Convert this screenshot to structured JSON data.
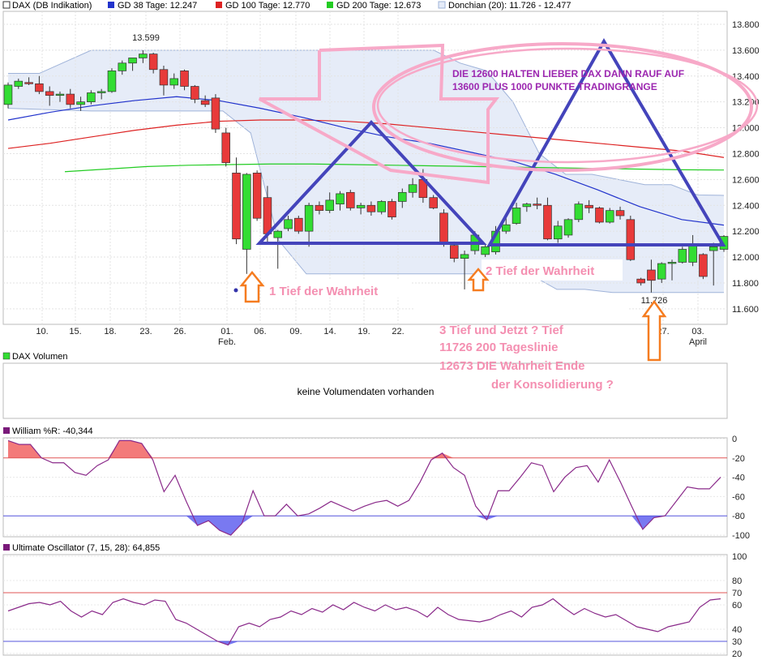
{
  "legend": {
    "dax": "DAX (DB Indikation)",
    "gd38": "GD 38 Tage: 12.247",
    "gd100": "GD 100 Tage: 12.770",
    "gd200": "GD 200 Tage: 12.673",
    "donchian": "Donchian (20): 11.726 - 12.477"
  },
  "colors": {
    "up": "#33dd33",
    "down": "#e83a3a",
    "gd38": "#2233cc",
    "gd100": "#dd2222",
    "gd200": "#22cc22",
    "donchian_fill": "#e6ecf8",
    "donchian_line": "#9fb3d9",
    "triangle": "#4444bb",
    "annotation_pink": "#f48fb1",
    "annotation_purple": "#9c27b0",
    "arrow": "#f57c20"
  },
  "chart_data": [
    {
      "type": "candlestick",
      "ylim": [
        11480,
        13900
      ],
      "yticks": [
        "11.600",
        "11.800",
        "12.000",
        "12.200",
        "12.400",
        "12.600",
        "12.800",
        "13.000",
        "13.200",
        "13.400",
        "13.600",
        "13.800"
      ],
      "ytick_values": [
        11600,
        11800,
        12000,
        12200,
        12400,
        12600,
        12800,
        13000,
        13200,
        13400,
        13600,
        13800
      ],
      "xticks": [
        "10.",
        "15.",
        "18.",
        "23.",
        "26.",
        "01.",
        "06.",
        "09.",
        "14.",
        "19.",
        "22.",
        "27.",
        "03."
      ],
      "xtick_sub": [
        "Feb.",
        "April"
      ],
      "candles": [
        {
          "o": 13180,
          "h": 13350,
          "l": 13150,
          "c": 13330
        },
        {
          "o": 13320,
          "h": 13380,
          "l": 13300,
          "c": 13360
        },
        {
          "o": 13350,
          "h": 13390,
          "l": 13330,
          "c": 13340
        },
        {
          "o": 13340,
          "h": 13400,
          "l": 13260,
          "c": 13280
        },
        {
          "o": 13280,
          "h": 13320,
          "l": 13170,
          "c": 13250
        },
        {
          "o": 13250,
          "h": 13280,
          "l": 13200,
          "c": 13260
        },
        {
          "o": 13260,
          "h": 13300,
          "l": 13150,
          "c": 13180
        },
        {
          "o": 13180,
          "h": 13240,
          "l": 13130,
          "c": 13200
        },
        {
          "o": 13200,
          "h": 13290,
          "l": 13180,
          "c": 13270
        },
        {
          "o": 13270,
          "h": 13300,
          "l": 13220,
          "c": 13280
        },
        {
          "o": 13280,
          "h": 13460,
          "l": 13270,
          "c": 13440
        },
        {
          "o": 13440,
          "h": 13520,
          "l": 13410,
          "c": 13500
        },
        {
          "o": 13500,
          "h": 13540,
          "l": 13440,
          "c": 13540
        },
        {
          "o": 13540,
          "h": 13599,
          "l": 13500,
          "c": 13570
        },
        {
          "o": 13570,
          "h": 13580,
          "l": 13420,
          "c": 13450
        },
        {
          "o": 13450,
          "h": 13480,
          "l": 13250,
          "c": 13330
        },
        {
          "o": 13330,
          "h": 13420,
          "l": 13300,
          "c": 13380
        },
        {
          "o": 13440,
          "h": 13450,
          "l": 13290,
          "c": 13320
        },
        {
          "o": 13320,
          "h": 13330,
          "l": 13190,
          "c": 13220
        },
        {
          "o": 13210,
          "h": 13250,
          "l": 13160,
          "c": 13180
        },
        {
          "o": 13230,
          "h": 13260,
          "l": 12960,
          "c": 12990
        },
        {
          "o": 12960,
          "h": 13000,
          "l": 12700,
          "c": 12730
        },
        {
          "o": 12650,
          "h": 12770,
          "l": 12100,
          "c": 12140
        },
        {
          "o": 12060,
          "h": 12650,
          "l": 11870,
          "c": 12640
        },
        {
          "o": 12650,
          "h": 12670,
          "l": 12280,
          "c": 12300
        },
        {
          "o": 12460,
          "h": 12550,
          "l": 12110,
          "c": 12180
        },
        {
          "o": 12150,
          "h": 12210,
          "l": 11910,
          "c": 12200
        },
        {
          "o": 12220,
          "h": 12320,
          "l": 12200,
          "c": 12290
        },
        {
          "o": 12300,
          "h": 12320,
          "l": 12180,
          "c": 12200
        },
        {
          "o": 12200,
          "h": 12420,
          "l": 12080,
          "c": 12400
        },
        {
          "o": 12400,
          "h": 12430,
          "l": 12330,
          "c": 12360
        },
        {
          "o": 12360,
          "h": 12500,
          "l": 12340,
          "c": 12440
        },
        {
          "o": 12410,
          "h": 12510,
          "l": 12360,
          "c": 12490
        },
        {
          "o": 12500,
          "h": 12520,
          "l": 12360,
          "c": 12380
        },
        {
          "o": 12380,
          "h": 12420,
          "l": 12330,
          "c": 12400
        },
        {
          "o": 12400,
          "h": 12430,
          "l": 12320,
          "c": 12350
        },
        {
          "o": 12350,
          "h": 12440,
          "l": 12330,
          "c": 12430
        },
        {
          "o": 12430,
          "h": 12450,
          "l": 12290,
          "c": 12310
        },
        {
          "o": 12430,
          "h": 12530,
          "l": 12380,
          "c": 12500
        },
        {
          "o": 12500,
          "h": 12610,
          "l": 12460,
          "c": 12560
        },
        {
          "o": 12600,
          "h": 12680,
          "l": 12420,
          "c": 12460
        },
        {
          "o": 12460,
          "h": 12480,
          "l": 12370,
          "c": 12380
        },
        {
          "o": 12340,
          "h": 12370,
          "l": 12080,
          "c": 12110
        },
        {
          "o": 12090,
          "h": 12120,
          "l": 11960,
          "c": 11990
        },
        {
          "o": 11990,
          "h": 12050,
          "l": 11750,
          "c": 12020
        },
        {
          "o": 12050,
          "h": 12200,
          "l": 12020,
          "c": 12170
        },
        {
          "o": 12020,
          "h": 12100,
          "l": 12000,
          "c": 12080
        },
        {
          "o": 12040,
          "h": 12240,
          "l": 12020,
          "c": 12200
        },
        {
          "o": 12200,
          "h": 12310,
          "l": 12180,
          "c": 12250
        },
        {
          "o": 12260,
          "h": 12420,
          "l": 12250,
          "c": 12380
        },
        {
          "o": 12390,
          "h": 12420,
          "l": 12350,
          "c": 12410
        },
        {
          "o": 12410,
          "h": 12460,
          "l": 12370,
          "c": 12400
        },
        {
          "o": 12400,
          "h": 12460,
          "l": 12130,
          "c": 12140
        },
        {
          "o": 12140,
          "h": 12280,
          "l": 12110,
          "c": 12240
        },
        {
          "o": 12170,
          "h": 12300,
          "l": 12150,
          "c": 12290
        },
        {
          "o": 12290,
          "h": 12430,
          "l": 12270,
          "c": 12410
        },
        {
          "o": 12400,
          "h": 12440,
          "l": 12340,
          "c": 12380
        },
        {
          "o": 12380,
          "h": 12390,
          "l": 12260,
          "c": 12270
        },
        {
          "o": 12270,
          "h": 12380,
          "l": 12260,
          "c": 12360
        },
        {
          "o": 12360,
          "h": 12390,
          "l": 12290,
          "c": 12320
        },
        {
          "o": 12290,
          "h": 12320,
          "l": 11970,
          "c": 11980
        },
        {
          "o": 11830,
          "h": 11840,
          "l": 11780,
          "c": 11800
        },
        {
          "o": 11900,
          "h": 11980,
          "l": 11726,
          "c": 11820
        },
        {
          "o": 11830,
          "h": 11960,
          "l": 11800,
          "c": 11950
        },
        {
          "o": 11960,
          "h": 11980,
          "l": 11820,
          "c": 11960
        },
        {
          "o": 11960,
          "h": 12080,
          "l": 11950,
          "c": 12060
        },
        {
          "o": 11960,
          "h": 12170,
          "l": 11930,
          "c": 12090
        },
        {
          "o": 12020,
          "h": 12030,
          "l": 11830,
          "c": 11850
        },
        {
          "o": 12050,
          "h": 12110,
          "l": 11780,
          "c": 12080
        },
        {
          "o": 12060,
          "h": 12170,
          "l": 12040,
          "c": 12160
        }
      ],
      "gd38": [
        13060,
        13120,
        13170,
        13210,
        13240,
        13210,
        13150,
        13080,
        13000,
        12930,
        12880,
        12810,
        12740,
        12640,
        12520,
        12390,
        12290,
        12247
      ],
      "gd100": [
        12840,
        12880,
        12930,
        12980,
        13020,
        13050,
        13060,
        13060,
        13050,
        13030,
        13000,
        12970,
        12940,
        12910,
        12880,
        12850,
        12820,
        12770
      ],
      "gd200": [
        12660,
        12680,
        12700,
        12710,
        12715,
        12720,
        12720,
        12715,
        12710,
        12705,
        12700,
        12695,
        12690,
        12685,
        12680,
        12675,
        12673
      ],
      "donchian_upper": [
        13420,
        13420,
        13440,
        13500,
        13599,
        13599,
        13599,
        13599,
        13599,
        13599,
        13599,
        13599,
        13599,
        13500,
        13440,
        13200,
        12800,
        12640,
        12640,
        12600,
        12560,
        12560,
        12480,
        12477
      ],
      "donchian_lower": [
        13150,
        13150,
        13150,
        13130,
        13130,
        13130,
        12960,
        12130,
        11870,
        11870,
        11870,
        11870,
        11870,
        11870,
        11870,
        11870,
        11870,
        11750,
        11750,
        11726,
        11726,
        11726,
        11726,
        11726
      ],
      "annotations": {
        "high_label": "13.599",
        "low_label": "11.726"
      }
    },
    {
      "type": "volume",
      "title": "DAX Volumen",
      "message": "keine Volumendaten vorhanden"
    },
    {
      "type": "line",
      "title": "William %R: -40,344",
      "ylim": [
        -100,
        0
      ],
      "yticks": [
        "0",
        "-20",
        "-40",
        "-60",
        "-80",
        "-100"
      ],
      "ytick_values": [
        0,
        -20,
        -40,
        -60,
        -80,
        -100
      ],
      "ref_lines": [
        -20,
        -80
      ],
      "values": [
        -2,
        -6,
        -6,
        -20,
        -25,
        -25,
        -35,
        -38,
        -28,
        -22,
        -2,
        -2,
        -5,
        -22,
        -55,
        -38,
        -65,
        -90,
        -85,
        -95,
        -100,
        -88,
        -54,
        -80,
        -80,
        -68,
        -80,
        -78,
        -72,
        -65,
        -70,
        -75,
        -70,
        -66,
        -64,
        -70,
        -64,
        -45,
        -22,
        -15,
        -30,
        -38,
        -70,
        -84,
        -54,
        -54,
        -40,
        -25,
        -28,
        -55,
        -40,
        -30,
        -28,
        -45,
        -22,
        -45,
        -70,
        -94,
        -82,
        -80,
        -65,
        -50,
        -52,
        -52,
        -40
      ]
    },
    {
      "type": "line",
      "title": "Ultimate Oscillator (7, 15, 28): 64,855",
      "ylim": [
        20,
        100
      ],
      "yticks": [
        "100",
        "80",
        "70",
        "60",
        "40",
        "30",
        "20"
      ],
      "ytick_values": [
        100,
        80,
        70,
        60,
        40,
        30,
        20
      ],
      "ref_lines": [
        70,
        30
      ],
      "values": [
        55,
        58,
        61,
        62,
        60,
        63,
        55,
        50,
        55,
        52,
        62,
        65,
        62,
        60,
        64,
        63,
        48,
        45,
        40,
        35,
        30,
        27,
        42,
        45,
        42,
        48,
        50,
        55,
        52,
        57,
        54,
        60,
        56,
        62,
        58,
        55,
        60,
        56,
        58,
        55,
        50,
        58,
        52,
        48,
        47,
        46,
        48,
        52,
        55,
        50,
        58,
        60,
        65,
        58,
        52,
        57,
        53,
        50,
        52,
        47,
        42,
        40,
        38,
        42,
        44,
        46,
        58,
        64,
        65
      ]
    }
  ],
  "overlay": {
    "note_line1": "DIE  12600 HALTEN LIEBER DAX DANN RAUF AUF",
    "note_line2": "13600 PLUS 1000 PUNKTE TRADINGRANGE",
    "tief1": "1 Tief  der Wahrheit",
    "tief2": "2 Tief der Wahrheit",
    "tief3_line1": "3 Tief und Jetzt ? Tief",
    "tief3_line2": "11726 200 Tageslinie",
    "tief3_line3": "12673  DIE Wahrheit Ende",
    "tief3_line4": "der Konsolidierung ?"
  }
}
